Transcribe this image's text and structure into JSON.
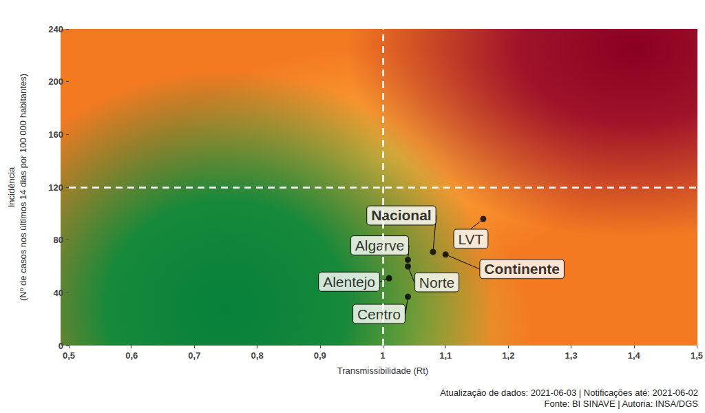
{
  "chart_data": {
    "type": "scatter",
    "x_label": "Transmissibilidade (Rt)",
    "y_label": [
      "Incidência",
      "(Nº de casos nos últimos 14 dias por 100 000 habitantes)"
    ],
    "caption": [
      "Atualização de dados: 2021-06-03 | Notificações até: 2021-06-02",
      "Fonte: BI SINAVE | Autoria: INSA/DGS"
    ],
    "labels": [
      "Nacional",
      "Continente",
      "LVT",
      "Algarve",
      "Norte",
      "Alentejo",
      "Centro"
    ],
    "x": [
      1.08,
      1.1,
      1.16,
      1.04,
      1.04,
      1.01,
      1.04
    ],
    "values": [
      71,
      69,
      96,
      65,
      60,
      51,
      37
    ],
    "color": "#000000",
    "xlim": [
      0.5,
      1.5
    ],
    "xticks": [
      {
        "value": 0.5,
        "label": "0,5"
      },
      {
        "value": 0.6,
        "label": "0,6"
      },
      {
        "value": 0.7,
        "label": "0,7"
      },
      {
        "value": 0.8,
        "label": "0,8"
      },
      {
        "value": 0.9,
        "label": "0,9"
      },
      1,
      {
        "value": 1.1,
        "label": "1,1"
      },
      {
        "value": 1.2,
        "label": "1,2"
      },
      {
        "value": 1.3,
        "label": "1,3"
      },
      {
        "value": 1.4,
        "label": "1,4"
      },
      {
        "value": 1.5,
        "label": "1,5"
      }
    ],
    "ylim": [
      0,
      240
    ],
    "yticks": [
      0,
      40,
      80,
      120,
      160,
      200,
      240
    ],
    "reference_lines": {
      "x": 1,
      "y": 120
    },
    "grid": false
  }
}
